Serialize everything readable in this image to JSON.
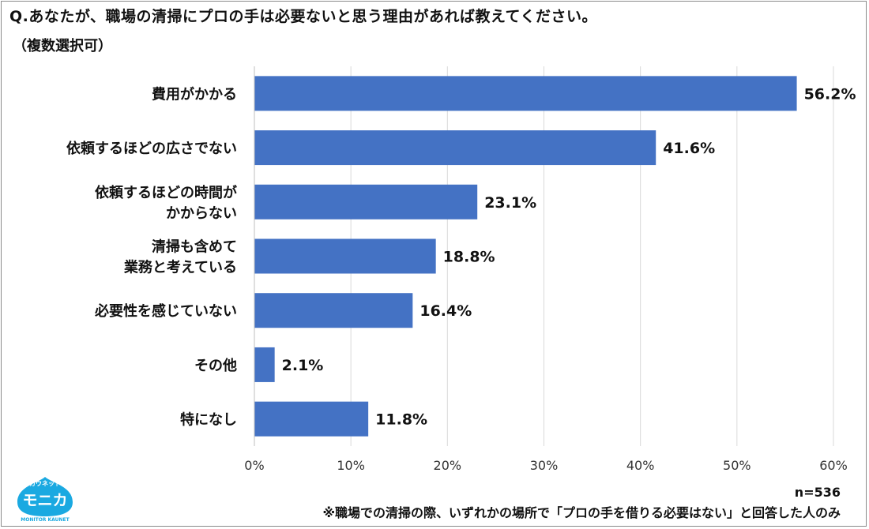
{
  "question": "Q.あなたが、職場の清掃にプロの手は必要ないと思う理由があれば教えてください。",
  "question_note": "（複数選択可）",
  "sample_size": "n=536",
  "footnote": "※職場での清掃の際、いずれかの場所で「プロの手を借りる必要はない」と回答した人のみ",
  "logo": {
    "top_text": "カウネット",
    "main_text": "モニカ",
    "sub_text": "MONITOR KAUNET"
  },
  "colors": {
    "bar": "#4472c4",
    "grid": "#d9d9d9",
    "logo": "#1aa9e1"
  },
  "chart_data": {
    "type": "bar",
    "orientation": "horizontal",
    "categories": [
      [
        "費用がかかる"
      ],
      [
        "依頼するほどの広さでない"
      ],
      [
        "依頼するほどの時間が",
        "かからない"
      ],
      [
        "清掃も含めて",
        "業務と考えている"
      ],
      [
        "必要性を感じていない"
      ],
      [
        "その他"
      ],
      [
        "特になし"
      ]
    ],
    "values": [
      56.2,
      41.6,
      23.1,
      18.8,
      16.4,
      2.1,
      11.8
    ],
    "value_labels": [
      "56.2%",
      "41.6%",
      "23.1%",
      "18.8%",
      "16.4%",
      "2.1%",
      "11.8%"
    ],
    "xlim": [
      0,
      60
    ],
    "xticks": [
      0,
      10,
      20,
      30,
      40,
      50,
      60
    ],
    "xtick_labels": [
      "0%",
      "10%",
      "20%",
      "30%",
      "40%",
      "50%",
      "60%"
    ],
    "grid": true
  }
}
